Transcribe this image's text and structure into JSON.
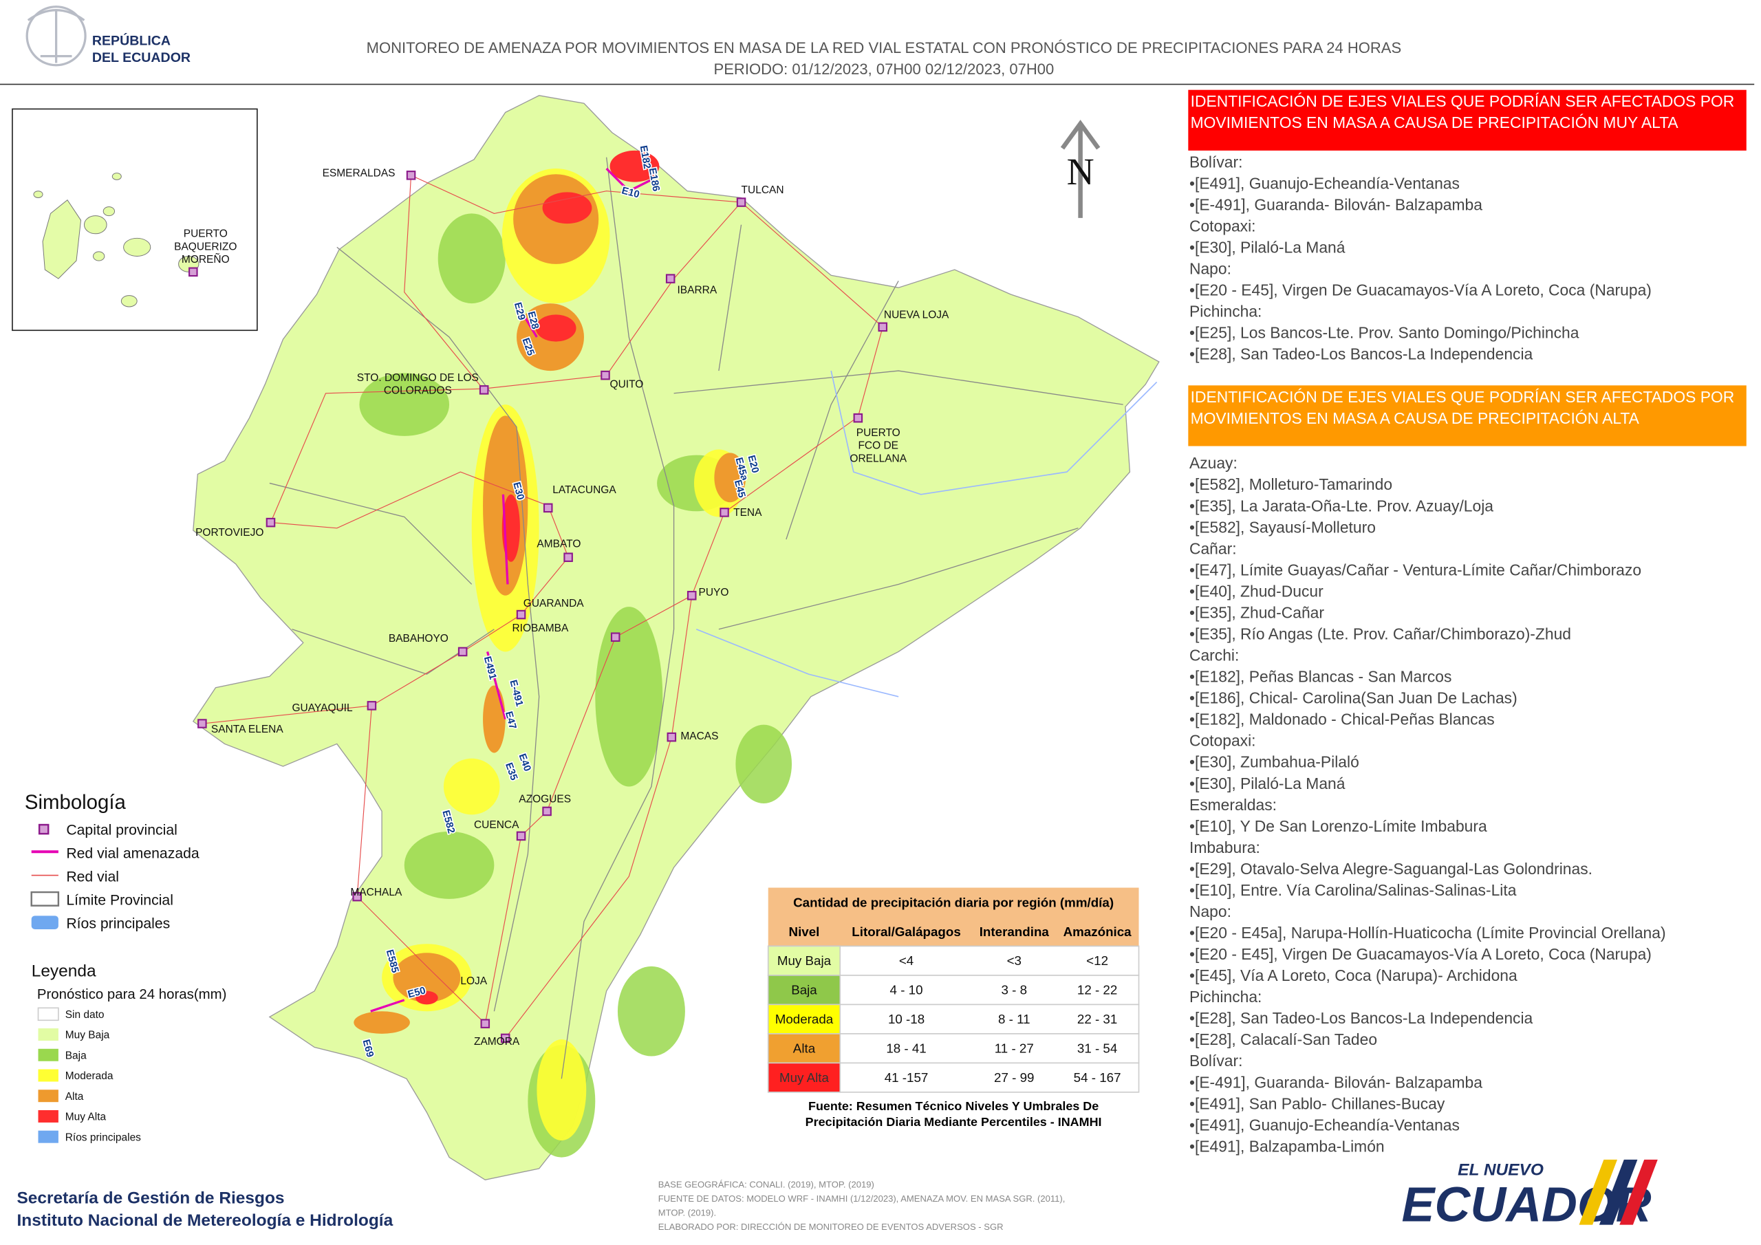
{
  "header": {
    "logo": [
      "REPÚBLICA",
      "DEL ECUADOR"
    ],
    "title": "MONITOREO DE AMENAZA POR MOVIMIENTOS EN MASA DE LA RED VIAL  ESTATAL  CON PRONÓSTICO  DE  PRECIPITACIONES PARA 24 HORAS",
    "period": "PERIODO: 01/12/2023, 07H00 02/12/2023, 07H00"
  },
  "map": {
    "north": "N",
    "cities": [
      [
        "ESMERALDAS"
      ],
      [
        "TULCAN"
      ],
      [
        "IBARRA"
      ],
      [
        "NUEVA LOJA"
      ],
      [
        "QUITO"
      ],
      [
        "STO. DOMINGO DE LOS",
        "COLORADOS"
      ],
      [
        "PUERTO",
        "FCO DE",
        "ORELLANA"
      ],
      [
        "LATACUNGA"
      ],
      [
        "TENA"
      ],
      [
        "PORTOVIEJO"
      ],
      [
        "AMBATO"
      ],
      [
        "PUYO"
      ],
      [
        "GUARANDA"
      ],
      [
        "RIOBAMBA"
      ],
      [
        "BABAHOYO"
      ],
      [
        "GUAYAQUIL"
      ],
      [
        "SANTA ELENA"
      ],
      [
        "MACAS"
      ],
      [
        "AZOGUES"
      ],
      [
        "CUENCA"
      ],
      [
        "MACHALA"
      ],
      [
        "LOJA"
      ],
      [
        "ZAMORA"
      ],
      [
        "PUERTO",
        "BAQUERIZO",
        "MOREÑO"
      ]
    ],
    "roads": [
      "E182",
      "E186",
      "E10",
      "E29",
      "E28",
      "E25",
      "E20",
      "E45a",
      "E45",
      "E30",
      "E491",
      "E-491",
      "E47",
      "E40",
      "E35",
      "E582",
      "E585",
      "E50",
      "E69"
    ]
  },
  "symbology": {
    "title": "Simbología",
    "items": [
      "Capital provincial",
      "Red vial amenazada",
      "Red vial",
      "Límite Provincial",
      "Ríos principales"
    ]
  },
  "legend": {
    "title": "Leyenda",
    "subtitle": "Pronóstico para 24 horas(mm)",
    "items": [
      "Sin dato",
      "Muy Baja",
      "Baja",
      "Moderada",
      "Alta",
      "Muy Alta",
      "Ríos principales"
    ]
  },
  "table": {
    "title": "Cantidad de precipitación diaria por región (mm/día)",
    "headers": [
      "Nivel",
      "Litoral/Galápagos",
      "Interandina",
      "Amazónica"
    ],
    "rows": [
      [
        "Muy Baja",
        "<4",
        "<3",
        "<12"
      ],
      [
        "Baja",
        "4 - 10",
        "3 - 8",
        "12 - 22"
      ],
      [
        "Moderada",
        "10 -18",
        "8 - 11",
        "22 - 31"
      ],
      [
        "Alta",
        "18 - 41",
        "11 - 27",
        "31 - 54"
      ],
      [
        "Muy Alta",
        "41 -157",
        "27 - 99",
        "54 - 167"
      ]
    ],
    "source": [
      "Fuente: Resumen Técnico Niveles Y Umbrales De",
      "Precipitación Diaria Mediante Percentiles - INAMHI"
    ]
  },
  "panels": [
    {
      "heading": [
        "IDENTIFICACIÓN DE EJES VIALES QUE PODRÍAN SER AFECTADOS POR",
        "MOVIMIENTOS EN MASA A CAUSA DE PRECIPITACIÓN MUY ALTA"
      ],
      "lines": [
        "Bolívar:",
        "•[E491], Guanujo-Echeandía-Ventanas",
        "•[E-491], Guaranda- Bilován- Balzapamba",
        "Cotopaxi:",
        "•[E30], Pilaló-La Maná",
        "Napo:",
        "•[E20 - E45], Virgen De Guacamayos-Vía A Loreto, Coca (Narupa)",
        "Pichincha:",
        "•[E25], Los Bancos-Lte. Prov. Santo Domingo/Pichincha",
        "•[E28], San Tadeo-Los Bancos-La Independencia"
      ]
    },
    {
      "heading": [
        "IDENTIFICACIÓN DE EJES VIALES QUE PODRÍAN SER AFECTADOS POR",
        "MOVIMIENTOS EN MASA A CAUSA DE PRECIPITACIÓN  ALTA"
      ],
      "lines": [
        "Azuay:",
        "•[E582], Molleturo-Tamarindo",
        "•[E35], La Jarata-Oña-Lte. Prov. Azuay/Loja",
        "•[E582], Sayausí-Molleturo",
        "Cañar:",
        "•[E47], Límite Guayas/Cañar - Ventura-Límite Cañar/Chimborazo",
        "•[E40], Zhud-Ducur",
        "•[E35], Zhud-Cañar",
        "•[E35], Río Angas (Lte. Prov. Cañar/Chimborazo)-Zhud",
        "Carchi:",
        "•[E182], Peñas Blancas - San Marcos",
        "•[E186], Chical- Carolina(San Juan De Lachas)",
        "•[E182], Maldonado - Chical-Peñas Blancas",
        "Cotopaxi:",
        "•[E30], Zumbahua-Pilaló",
        "•[E30], Pilaló-La Maná",
        "Esmeraldas:",
        "•[E10], Y De San Lorenzo-Límite Imbabura",
        "Imbabura:",
        "•[E29], Otavalo-Selva Alegre-Saguangal-Las Golondrinas.",
        "•[E10], Entre. Vía Carolina/Salinas-Salinas-Lita",
        "Napo:",
        "•[E20 - E45a], Narupa-Hollín-Huaticocha (Límite Provincial Orellana)",
        "•[E20 - E45], Virgen De Guacamayos-Vía A Loreto, Coca (Narupa)",
        "•[E45], Vía A Loreto, Coca (Narupa)- Archidona",
        "Pichincha:",
        "•[E28], San Tadeo-Los Bancos-La Independencia",
        "•[E28], Calacalí-San Tadeo",
        "Bolívar:",
        "•[E-491], Guaranda- Bilován- Balzapamba",
        "•[E491], San Pablo- Chillanes-Bucay",
        "•[E491], Guanujo-Echeandía-Ventanas",
        "•[E491], Balzapamba-Limón"
      ]
    }
  ],
  "footer": {
    "org": [
      "Secretaría de Gestión de Riesgos",
      "Instituto Nacional de Metereología e Hidrología"
    ],
    "credits": [
      "BASE GEOGRÁFICA: CONALI. (2019), MTOP. (2019)",
      "FUENTE DE DATOS: MODELO WRF - INAMHI (1/12/2023),  AMENAZA MOV. EN MASA SGR. (2011),",
      "MTOP. (2019).",
      "ELABORADO POR: DIRECCIÓN DE MONITOREO DE EVENTOS ADVERSOS - SGR"
    ],
    "brand": [
      "EL NUEVO",
      "ECUADOR"
    ]
  }
}
